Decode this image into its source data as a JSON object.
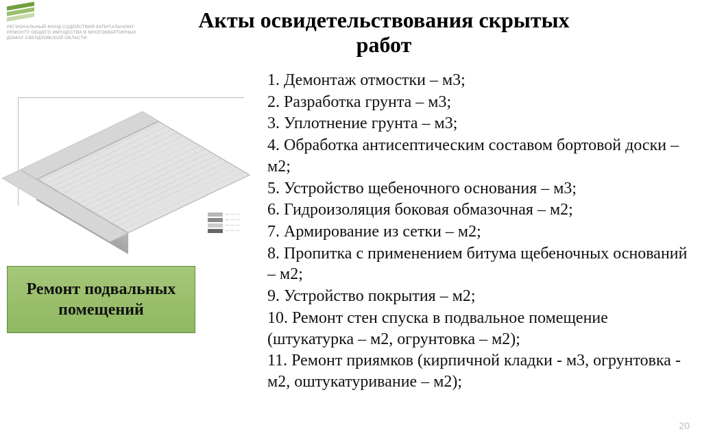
{
  "logo": {
    "line1": "Региональный фонд содействия капитальному",
    "line2": "ремонту общего имущества в многоквартирных",
    "line3": "домах Свердловской области"
  },
  "title": "Акты освидетельствования скрытых работ",
  "title_fontsize": 32,
  "badge": {
    "text": "Ремонт подвальных помещений",
    "fontsize": 24,
    "bg_gradient_top": "#a5c77a",
    "bg_gradient_bottom": "#8fb860",
    "border_color": "#5f8a3a"
  },
  "list": {
    "fontsize": 24,
    "items": [
      "1. Демонтаж отмостки – м3;",
      "2. Разработка грунта – м3;",
      "3. Уплотнение грунта – м3;",
      "4. Обработка антисептическим составом бортовой доски – м2;",
      "5. Устройство щебеночного основания – м3;",
      "6. Гидроизоляция боковая обмазочная – м2;",
      "7. Армирование из сетки – м2;",
      "8. Пропитка с применением битума щебеночных оснований – м2;",
      "9. Устройство покрытия – м2;",
      "10. Ремонт стен спуска в подвальное помещение (штукатурка – м2, огрунтовка – м2);",
      "11. Ремонт приямков (кирпичной кладки -  м3, огрунтовка - м2, оштукатуривание – м2);"
    ]
  },
  "diagram": {
    "type": "isometric-schematic",
    "grid_color": "#d0d0d0",
    "slab_color": "#e3e3e3",
    "wall_color": "#b8b8b8",
    "legend_swatches": [
      "#b8b8b8",
      "#888888",
      "#cccccc",
      "#666666"
    ]
  },
  "page_number": "20",
  "page_number_fontsize": 14,
  "colors": {
    "text": "#111111",
    "background": "#ffffff",
    "logo_green_dark": "#6fa03c",
    "logo_green_mid": "#9abf6d",
    "logo_green_light": "#c6d9a8",
    "muted": "#bdbdbd"
  }
}
